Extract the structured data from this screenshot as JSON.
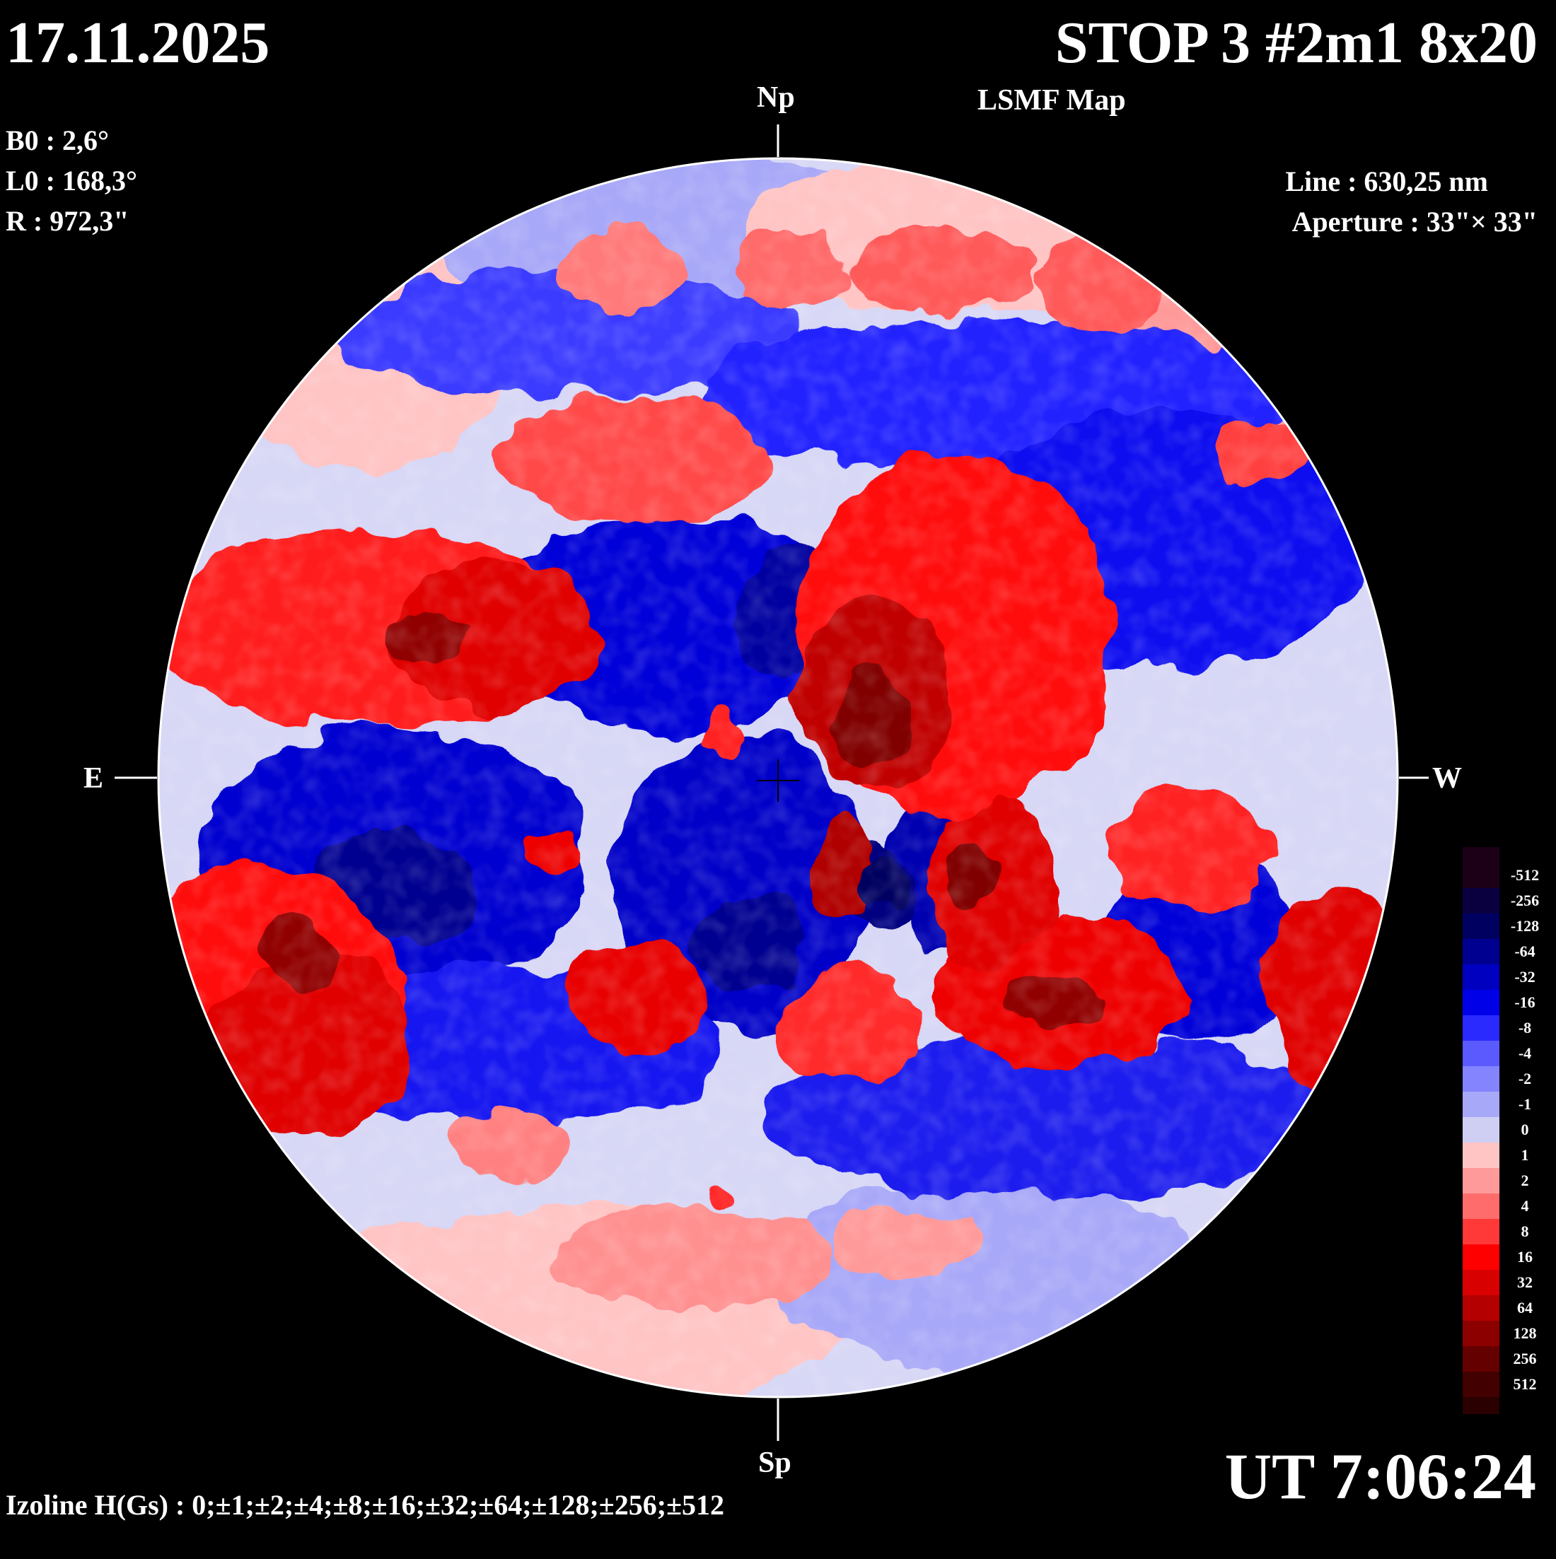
{
  "header": {
    "date": "17.11.2025",
    "title": "STOP 3 #2m1 8x20",
    "subtitle": "LSMF  Map"
  },
  "params": {
    "b0": "B0 : 2,6°",
    "l0": "L0 : 168,3°",
    "r": "R  : 972,3\""
  },
  "instrument": {
    "line": "Line :  630,25 nm",
    "aperture": "Aperture : 33\"× 33\""
  },
  "directions": {
    "north": "Np",
    "south": "Sp",
    "east": "E",
    "west": "W"
  },
  "time": "UT 7:06:24",
  "izoline": "Izoline H(Gs) : 0;±1;±2;±4;±8;±16;±32;±64;±128;±256;±512",
  "legend": {
    "levels": [
      {
        "label": "-512",
        "color": "#1c0018"
      },
      {
        "label": "-256",
        "color": "#0a0040"
      },
      {
        "label": "-128",
        "color": "#000060"
      },
      {
        "label": "-64",
        "color": "#000090"
      },
      {
        "label": "-32",
        "color": "#0000c0"
      },
      {
        "label": "-16",
        "color": "#0000e8"
      },
      {
        "label": "-8",
        "color": "#2a2aff"
      },
      {
        "label": "-4",
        "color": "#5a5aff"
      },
      {
        "label": "-2",
        "color": "#8484ff"
      },
      {
        "label": "-1",
        "color": "#a8a8f8"
      },
      {
        "label": "0",
        "color": "#cfcff4"
      },
      {
        "label": "1",
        "color": "#ffc4c4"
      },
      {
        "label": "2",
        "color": "#ff9a9a"
      },
      {
        "label": "4",
        "color": "#ff6c6c"
      },
      {
        "label": "8",
        "color": "#ff3838"
      },
      {
        "label": "16",
        "color": "#ff0000"
      },
      {
        "label": "32",
        "color": "#d80000"
      },
      {
        "label": "64",
        "color": "#b40000"
      },
      {
        "label": "128",
        "color": "#8c0000"
      },
      {
        "label": "256",
        "color": "#640000"
      },
      {
        "label": "512",
        "color": "#420000"
      }
    ],
    "bottom_color": "#2a0000"
  },
  "map_regions": {
    "positive_color": "#ff1010",
    "negative_color": "#1010e0"
  }
}
